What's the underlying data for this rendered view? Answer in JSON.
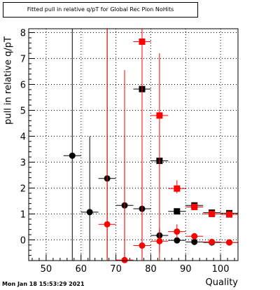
{
  "title": "Fitted pull in relative q/pT for Global Rec Pion NoHits",
  "timestamp": "Mon Jan 18 15:53:29 2021",
  "chart_data": {
    "type": "scatter",
    "title": "Fitted pull in relative q/pT for Global Rec Pion NoHits",
    "xlabel": "Quality",
    "ylabel": "pull in relative q/pT",
    "xlim": [
      45,
      105
    ],
    "ylim": [
      -0.8,
      8.15
    ],
    "xticks": [
      50,
      60,
      70,
      80,
      90,
      100
    ],
    "yticks": [
      0,
      1,
      2,
      3,
      4,
      5,
      6,
      7,
      8
    ],
    "grid": true,
    "series": [
      {
        "color": "#000000",
        "marker": "circle",
        "points": [
          {
            "x": 57.5,
            "y": 3.25,
            "xerr": 2.5,
            "ylo": -0.8,
            "yhi": 8.15
          },
          {
            "x": 62.5,
            "y": 1.07,
            "xerr": 2.5,
            "ylo": -0.8,
            "yhi": 4.0
          },
          {
            "x": 67.5,
            "y": 2.37,
            "xerr": 2.5,
            "ylo": -0.8,
            "yhi": 8.15
          },
          {
            "x": 72.5,
            "y": 1.33,
            "xerr": 2.5,
            "ylo": -0.8,
            "yhi": 4.05
          },
          {
            "x": 77.5,
            "y": 1.2,
            "xerr": 2.5,
            "ylo": -0.8,
            "yhi": 2.8
          },
          {
            "x": 82.5,
            "y": 0.17,
            "xerr": 2.5,
            "ylo": -0.1,
            "yhi": 0.45
          },
          {
            "x": 87.5,
            "y": -0.02,
            "xerr": 2.5,
            "ylo": -0.07,
            "yhi": 0.03
          },
          {
            "x": 92.5,
            "y": -0.08,
            "xerr": 2.5,
            "ylo": -0.1,
            "yhi": -0.06
          },
          {
            "x": 97.5,
            "y": -0.1,
            "xerr": 2.5,
            "ylo": -0.1,
            "yhi": -0.1
          },
          {
            "x": 102.5,
            "y": -0.1,
            "xerr": 2.5,
            "ylo": -0.1,
            "yhi": -0.1
          }
        ]
      },
      {
        "color": "#000000",
        "marker": "square",
        "points": [
          {
            "x": 77.5,
            "y": 5.82,
            "xerr": 2.5,
            "ylo": 5.75,
            "yhi": 5.9
          },
          {
            "x": 82.5,
            "y": 3.05,
            "xerr": 2.5,
            "ylo": 2.95,
            "yhi": 3.15
          },
          {
            "x": 87.5,
            "y": 1.1,
            "xerr": 2.5,
            "ylo": 1.05,
            "yhi": 1.15
          },
          {
            "x": 92.5,
            "y": 1.33,
            "xerr": 2.5,
            "ylo": 1.3,
            "yhi": 1.36
          },
          {
            "x": 97.5,
            "y": 1.05,
            "xerr": 2.5,
            "ylo": 1.03,
            "yhi": 1.07
          },
          {
            "x": 102.5,
            "y": 1.03,
            "xerr": 2.5,
            "ylo": 1.01,
            "yhi": 1.05
          }
        ]
      },
      {
        "color": "#ff0000",
        "marker": "circle",
        "points": [
          {
            "x": 67.5,
            "y": 0.6,
            "xerr": 2.5,
            "ylo": -0.8,
            "yhi": 8.15
          },
          {
            "x": 72.5,
            "y": -0.78,
            "xerr": 2.5,
            "ylo": -0.8,
            "yhi": 6.55
          },
          {
            "x": 77.5,
            "y": -0.22,
            "xerr": 2.5,
            "ylo": -0.8,
            "yhi": 8.15
          },
          {
            "x": 82.5,
            "y": -0.05,
            "xerr": 2.5,
            "ylo": -0.5,
            "yhi": 0.4
          },
          {
            "x": 87.5,
            "y": 0.32,
            "xerr": 2.5,
            "ylo": 0.05,
            "yhi": 0.6
          },
          {
            "x": 92.5,
            "y": 0.14,
            "xerr": 2.5,
            "ylo": 0.08,
            "yhi": 0.2
          },
          {
            "x": 97.5,
            "y": -0.08,
            "xerr": 2.5,
            "ylo": -0.1,
            "yhi": -0.06
          },
          {
            "x": 102.5,
            "y": -0.1,
            "xerr": 2.5,
            "ylo": -0.1,
            "yhi": -0.1
          }
        ]
      },
      {
        "color": "#ff0000",
        "marker": "square",
        "points": [
          {
            "x": 77.5,
            "y": 7.65,
            "xerr": 2.5,
            "ylo": 7.55,
            "yhi": 7.75
          },
          {
            "x": 82.5,
            "y": 4.8,
            "xerr": 2.5,
            "ylo": -0.8,
            "yhi": 7.2
          },
          {
            "x": 87.5,
            "y": 1.98,
            "xerr": 2.5,
            "ylo": 1.8,
            "yhi": 2.3
          },
          {
            "x": 92.5,
            "y": 1.27,
            "xerr": 2.5,
            "ylo": 1.22,
            "yhi": 1.32
          },
          {
            "x": 97.5,
            "y": 1.0,
            "xerr": 2.5,
            "ylo": 0.98,
            "yhi": 1.02
          },
          {
            "x": 102.5,
            "y": 0.98,
            "xerr": 2.5,
            "ylo": 0.96,
            "yhi": 1.0
          }
        ]
      }
    ]
  }
}
